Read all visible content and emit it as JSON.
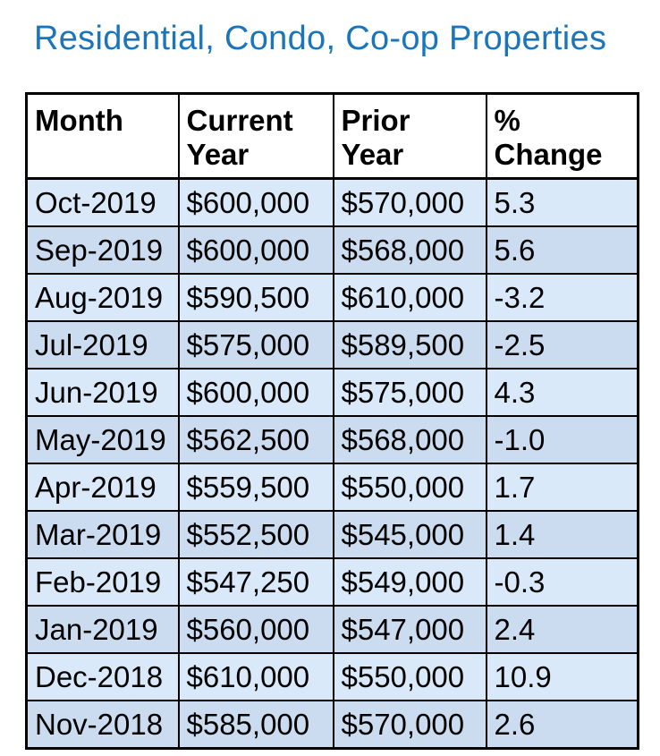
{
  "title": "Residential, Condo, Co-op Properties",
  "colors": {
    "title_blue": "#1b75bd",
    "row_light": "#d9e9fa",
    "row_dark": "#cbdcf0",
    "border": "#000000",
    "header_bg": "#ffffff"
  },
  "table": {
    "columns": [
      {
        "key": "month",
        "label": "Month"
      },
      {
        "key": "current",
        "label": "Current\nYear"
      },
      {
        "key": "prior",
        "label": "Prior\nYear"
      },
      {
        "key": "change",
        "label": "%\nChange"
      }
    ],
    "rows": [
      {
        "month": "Oct-2019",
        "current": "$600,000",
        "prior": "$570,000",
        "change": "5.3"
      },
      {
        "month": "Sep-2019",
        "current": "$600,000",
        "prior": "$568,000",
        "change": "5.6"
      },
      {
        "month": "Aug-2019",
        "current": "$590,500",
        "prior": "$610,000",
        "change": "-3.2"
      },
      {
        "month": "Jul-2019",
        "current": "$575,000",
        "prior": "$589,500",
        "change": "-2.5"
      },
      {
        "month": "Jun-2019",
        "current": "$600,000",
        "prior": "$575,000",
        "change": "4.3"
      },
      {
        "month": "May-2019",
        "current": "$562,500",
        "prior": "$568,000",
        "change": "-1.0"
      },
      {
        "month": "Apr-2019",
        "current": "$559,500",
        "prior": "$550,000",
        "change": "1.7"
      },
      {
        "month": "Mar-2019",
        "current": "$552,500",
        "prior": "$545,000",
        "change": "1.4"
      },
      {
        "month": "Feb-2019",
        "current": "$547,250",
        "prior": "$549,000",
        "change": "-0.3"
      },
      {
        "month": "Jan-2019",
        "current": "$560,000",
        "prior": "$547,000",
        "change": "2.4"
      },
      {
        "month": "Dec-2018",
        "current": "$610,000",
        "prior": "$550,000",
        "change": "10.9"
      },
      {
        "month": "Nov-2018",
        "current": "$585,000",
        "prior": "$570,000",
        "change": "2.6"
      }
    ]
  }
}
